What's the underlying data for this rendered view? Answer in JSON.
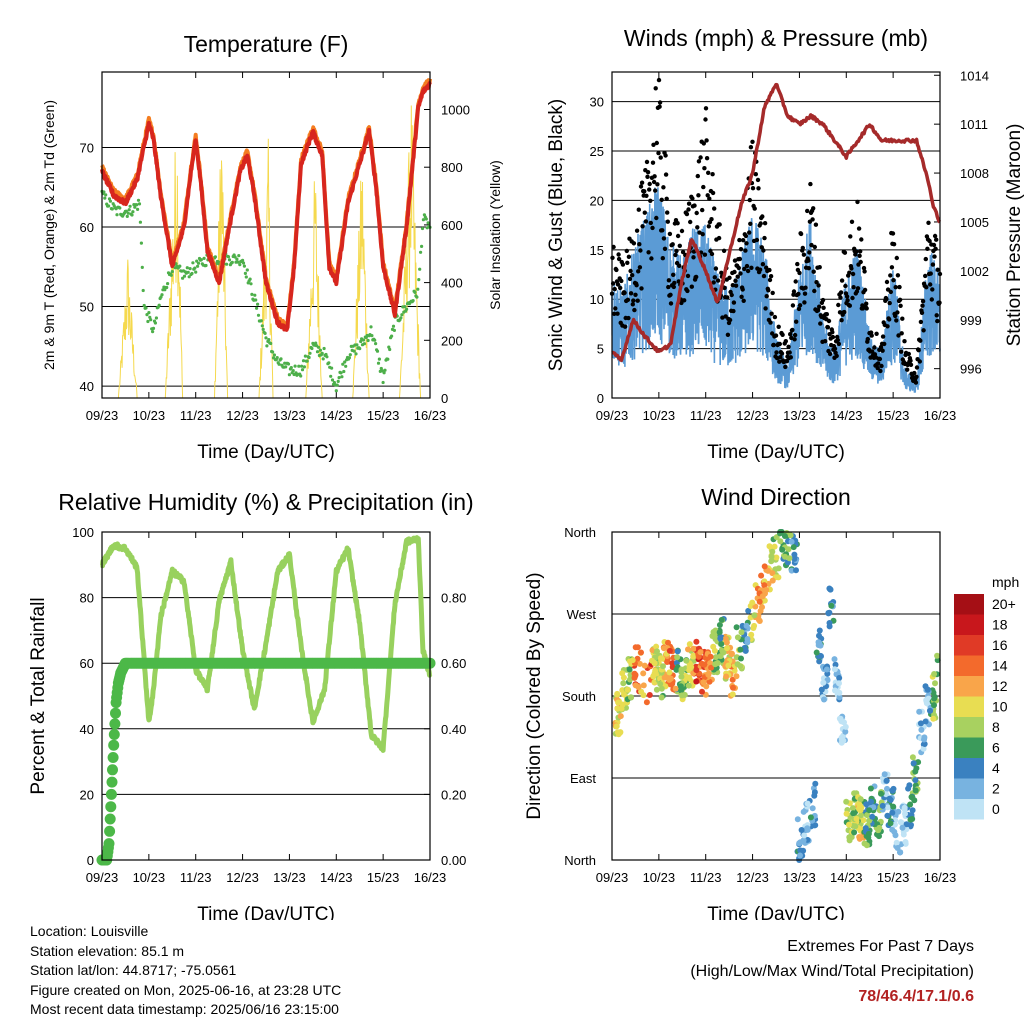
{
  "x_ticks": [
    "09/23",
    "10/23",
    "11/23",
    "12/23",
    "13/23",
    "14/23",
    "15/23",
    "16/23"
  ],
  "chart_data": [
    {
      "type": "line",
      "title": "Temperature (F)",
      "xlabel": "Time (Day/UTC)",
      "ylabel": "2m & 9m T (Red, Orange) & 2m Td (Green)",
      "y2label": "Solar Insolation (Yellow)",
      "x_range": [
        "09/23",
        "16/23"
      ],
      "ylim": [
        38.5,
        79.5
      ],
      "yticks": [
        40,
        50,
        60,
        70
      ],
      "y2lim": [
        0,
        1130
      ],
      "y2ticks": [
        0,
        200,
        400,
        600,
        800,
        1000
      ],
      "grid": "horizontal",
      "colors": {
        "t2m": "#d7261e",
        "t9m": "#f47d20",
        "td2m": "#4daf4a",
        "solar": "#f5d94e"
      },
      "series": [
        {
          "name": "2m T",
          "axis": "left",
          "t": [
            0,
            0.25,
            0.5,
            0.75,
            1.0,
            1.1,
            1.25,
            1.5,
            1.75,
            1.9,
            2.0,
            2.1,
            2.25,
            2.5,
            2.75,
            2.95,
            3.1,
            3.25,
            3.5,
            3.75,
            3.95,
            4.1,
            4.25,
            4.5,
            4.7,
            4.85,
            5.0,
            5.25,
            5.5,
            5.7,
            5.85,
            6.0,
            6.25,
            6.5,
            6.75,
            6.85,
            7.0
          ],
          "values": [
            67,
            64,
            63,
            66,
            73,
            71,
            64,
            55,
            60,
            67,
            71,
            66,
            57,
            53,
            61,
            67,
            69,
            64,
            53,
            48,
            47,
            55,
            68,
            72,
            69,
            55,
            53,
            63,
            68,
            72,
            65,
            55,
            49,
            60,
            75,
            77,
            78
          ]
        },
        {
          "name": "9m T",
          "axis": "left",
          "t": [
            0,
            0.25,
            0.5,
            0.75,
            1.0,
            1.1,
            1.25,
            1.5,
            1.75,
            1.9,
            2.0,
            2.1,
            2.25,
            2.5,
            2.75,
            2.95,
            3.1,
            3.25,
            3.5,
            3.75,
            3.95,
            4.1,
            4.25,
            4.5,
            4.7,
            4.85,
            5.0,
            5.25,
            5.5,
            5.7,
            5.85,
            6.0,
            6.25,
            6.5,
            6.75,
            6.85,
            7.0
          ],
          "values": [
            67.5,
            64.5,
            63.5,
            66.5,
            73.5,
            71.5,
            64.5,
            55.5,
            60.5,
            67.5,
            71.5,
            66.5,
            57.5,
            53.5,
            61.5,
            67.5,
            69.5,
            64.5,
            53.5,
            48.5,
            47.5,
            55.5,
            68.5,
            72.5,
            69.5,
            55.5,
            53.5,
            63.5,
            68.5,
            72.5,
            65.5,
            55.5,
            49.5,
            60.5,
            75.5,
            77.5,
            78.5
          ]
        },
        {
          "name": "2m Td",
          "axis": "left",
          "t": [
            0,
            0.3,
            0.6,
            0.8,
            0.9,
            1.1,
            1.25,
            1.5,
            1.75,
            2.0,
            2.25,
            2.6,
            3.0,
            3.25,
            3.5,
            3.75,
            4.0,
            4.25,
            4.5,
            4.75,
            5.0,
            5.25,
            5.5,
            5.75,
            6.0,
            6.25,
            6.5,
            6.75,
            6.85,
            7.0
          ],
          "values": [
            64,
            62,
            62,
            63,
            50,
            47,
            51,
            55,
            54,
            55,
            56,
            56,
            56,
            51,
            46,
            43,
            42,
            42,
            45,
            44,
            40,
            44,
            45,
            47,
            41,
            48,
            50,
            52,
            61,
            60
          ]
        },
        {
          "name": "Solar",
          "axis": "right",
          "t": [
            0.35,
            0.55,
            0.75,
            1.35,
            1.6,
            1.72,
            2.4,
            2.55,
            2.68,
            3.35,
            3.55,
            3.65,
            4.35,
            4.55,
            4.7,
            5.35,
            5.55,
            5.7,
            6.35,
            6.6,
            6.8
          ],
          "values": [
            0,
            520,
            0,
            0,
            1050,
            0,
            0,
            1050,
            0,
            0,
            900,
            0,
            0,
            850,
            0,
            0,
            900,
            0,
            0,
            1080,
            0
          ]
        }
      ]
    },
    {
      "type": "scatter",
      "title": "Winds (mph) & Pressure (mb)",
      "xlabel": "Time (Day/UTC)",
      "ylabel": "Sonic Wind & Gust (Blue, Black)",
      "y2label": "Station Pressure (Maroon)",
      "x_range": [
        "09/23",
        "16/23"
      ],
      "ylim": [
        0,
        33
      ],
      "yticks": [
        0,
        5,
        10,
        15,
        20,
        25,
        30
      ],
      "y2lim": [
        994.2,
        1014.2
      ],
      "y2ticks": [
        996,
        999,
        1002,
        1005,
        1008,
        1011,
        1014
      ],
      "grid": "horizontal",
      "colors": {
        "wind": "#5b9bd5",
        "gust": "#000000",
        "pressure": "#a52a2a"
      },
      "series": [
        {
          "name": "Wind",
          "axis": "left",
          "t": [
            0,
            0.25,
            0.5,
            0.75,
            1.0,
            1.25,
            1.5,
            1.75,
            2.0,
            2.25,
            2.5,
            2.75,
            3.0,
            3.25,
            3.5,
            3.75,
            4.0,
            4.25,
            4.5,
            4.75,
            5.0,
            5.25,
            5.5,
            5.75,
            6.0,
            6.25,
            6.5,
            6.75,
            7.0
          ],
          "values": [
            8,
            7,
            10,
            12,
            14,
            10,
            9,
            11,
            11,
            8,
            7,
            9,
            12,
            10,
            4,
            2,
            8,
            12,
            5,
            3,
            8,
            10,
            4,
            3,
            9,
            2,
            1,
            10,
            8
          ]
        },
        {
          "name": "Gust",
          "axis": "left",
          "t": [
            0,
            0.25,
            0.5,
            0.75,
            0.95,
            1.1,
            1.25,
            1.5,
            1.75,
            2.0,
            2.25,
            2.5,
            2.75,
            3.0,
            3.25,
            3.5,
            3.75,
            4.0,
            4.25,
            4.5,
            4.75,
            5.0,
            5.25,
            5.5,
            5.75,
            6.0,
            6.25,
            6.5,
            6.75,
            7.0
          ],
          "values": [
            12,
            10,
            14,
            18,
            26,
            20,
            14,
            13,
            17,
            22,
            14,
            9,
            13,
            20,
            14,
            6,
            4,
            12,
            17,
            8,
            5,
            13,
            15,
            6,
            4,
            14,
            4,
            2,
            15,
            11
          ]
        },
        {
          "name": "Pressure",
          "axis": "right",
          "t": [
            0,
            0.2,
            0.45,
            0.7,
            1.0,
            1.25,
            1.5,
            1.7,
            2.0,
            2.25,
            2.5,
            2.75,
            3.0,
            3.25,
            3.5,
            3.75,
            4.0,
            4.25,
            4.5,
            4.75,
            5.0,
            5.25,
            5.5,
            5.75,
            6.0,
            6.25,
            6.5,
            6.75,
            6.85,
            7.0
          ],
          "values": [
            997,
            996.5,
            999,
            998,
            997,
            997.5,
            1001.5,
            1004,
            1002,
            1000,
            1003,
            1006,
            1008,
            1012,
            1013.5,
            1011.5,
            1011,
            1011.5,
            1011,
            1010,
            1009,
            1010,
            1011,
            1010,
            1010,
            1010,
            1010,
            1007.5,
            1006,
            1005
          ]
        }
      ]
    },
    {
      "type": "line",
      "title": "Relative Humidity (%) & Precipitation (in)",
      "xlabel": "Time (Day/UTC)",
      "ylabel": "Percent & Total Rainfall",
      "x_range": [
        "09/23",
        "16/23"
      ],
      "ylim": [
        0,
        100
      ],
      "yticks": [
        0,
        20,
        40,
        60,
        80,
        100
      ],
      "y2lim": [
        0,
        1.0
      ],
      "y2ticks": [
        "0.00",
        "0.20",
        "0.40",
        "0.60",
        "0.80"
      ],
      "grid": "horizontal",
      "colors": {
        "rh": "#98d15e",
        "precip": "#4cb848"
      },
      "series": [
        {
          "name": "RH",
          "axis": "left",
          "t": [
            0,
            0.25,
            0.5,
            0.75,
            1.0,
            1.1,
            1.25,
            1.5,
            1.75,
            2.0,
            2.25,
            2.5,
            2.75,
            3.0,
            3.25,
            3.5,
            3.75,
            4.0,
            4.25,
            4.5,
            4.75,
            5.0,
            5.25,
            5.5,
            5.75,
            6.0,
            6.25,
            6.5,
            6.75,
            6.85,
            7.0
          ],
          "values": [
            90,
            96,
            95,
            89,
            42,
            52,
            74,
            88,
            85,
            58,
            52,
            79,
            91,
            64,
            46,
            66,
            88,
            93,
            65,
            42,
            52,
            88,
            95,
            72,
            38,
            34,
            78,
            97,
            98,
            64,
            56
          ]
        },
        {
          "name": "Precipitation",
          "axis": "right",
          "t": [
            0,
            0.1,
            0.15,
            0.2,
            0.25,
            0.3,
            0.35,
            0.4,
            0.5,
            1.0,
            2.0,
            3.0,
            4.0,
            5.0,
            6.0,
            7.0
          ],
          "values": [
            0,
            0,
            0.05,
            0.2,
            0.35,
            0.48,
            0.54,
            0.57,
            0.6,
            0.6,
            0.6,
            0.6,
            0.6,
            0.6,
            0.6,
            0.6
          ]
        }
      ]
    },
    {
      "type": "scatter",
      "title": "Wind Direction",
      "xlabel": "Time (Day/UTC)",
      "ylabel": "Direction (Colored By Speed)",
      "x_range": [
        "09/23",
        "16/23"
      ],
      "ylim": [
        0,
        360
      ],
      "yticks": [
        "North",
        "East",
        "South",
        "West",
        "North"
      ],
      "grid": "horizontal",
      "series": [
        {
          "name": "Direction",
          "t": [
            0.1,
            0.2,
            0.3,
            0.4,
            0.5,
            0.6,
            0.7,
            0.8,
            0.9,
            1.0,
            1.1,
            1.2,
            1.3,
            1.4,
            1.5,
            1.6,
            1.7,
            1.8,
            1.9,
            2.0,
            2.1,
            2.2,
            2.3,
            2.4,
            2.5,
            2.6,
            2.7,
            2.8,
            2.9,
            3.0,
            3.1,
            3.2,
            3.3,
            3.4,
            3.5,
            3.6,
            3.7,
            3.8,
            3.9,
            4.0,
            4.2,
            4.4,
            4.6,
            4.8,
            5.0,
            5.2,
            5.4,
            5.6,
            5.8,
            6.0,
            6.2,
            6.4,
            6.6,
            6.8,
            6.9
          ],
          "values": [
            175,
            160,
            185,
            200,
            210,
            205,
            195,
            210,
            200,
            215,
            210,
            205,
            200,
            215,
            220,
            205,
            215,
            230,
            240,
            220,
            205,
            235,
            250,
            265,
            280,
            300,
            320,
            335,
            355,
            345,
            335,
            20,
            40,
            60,
            230,
            190,
            280,
            200,
            150,
            40,
            50,
            45,
            40,
            60,
            50,
            70,
            55,
            30,
            40,
            60,
            90,
            140,
            170,
            180,
            200
          ],
          "speeds": [
            6,
            10,
            9,
            8,
            14,
            12,
            16,
            10,
            8,
            12,
            14,
            6,
            8,
            10,
            16,
            14,
            12,
            8,
            6,
            10,
            12,
            8,
            4,
            10,
            12,
            12,
            10,
            8,
            6,
            6,
            4,
            4,
            2,
            4,
            4,
            2,
            4,
            2,
            0,
            8,
            8,
            10,
            6,
            4,
            6,
            2,
            4,
            2,
            0,
            4,
            6,
            2,
            2,
            8,
            6
          ]
        }
      ],
      "colorbar": {
        "title": "mph",
        "labels": [
          "20+",
          "18",
          "16",
          "14",
          "12",
          "10",
          "8",
          "6",
          "4",
          "2",
          "0"
        ],
        "colors": [
          "#a50f15",
          "#c8171c",
          "#e03a26",
          "#f36a2c",
          "#f9a54a",
          "#e8dd52",
          "#a8d160",
          "#3a9a5a",
          "#3a81c0",
          "#78b3e0",
          "#bfe3f5"
        ]
      }
    }
  ],
  "info": {
    "location": "Location: Louisville",
    "elevation": "Station elevation: 85.1 m",
    "latlon": "Station lat/lon: 44.8717; -75.0561",
    "created": "Figure created on Mon, 2025-06-16, at 23:28 UTC",
    "recent": "Most recent data timestamp: 2025/06/16 23:15:00"
  },
  "extremes": {
    "title": "Extremes For Past 7 Days",
    "subtitle": "(High/Low/Max Wind/Total Precipitation)",
    "value": "78/46.4/17.1/0.6"
  }
}
